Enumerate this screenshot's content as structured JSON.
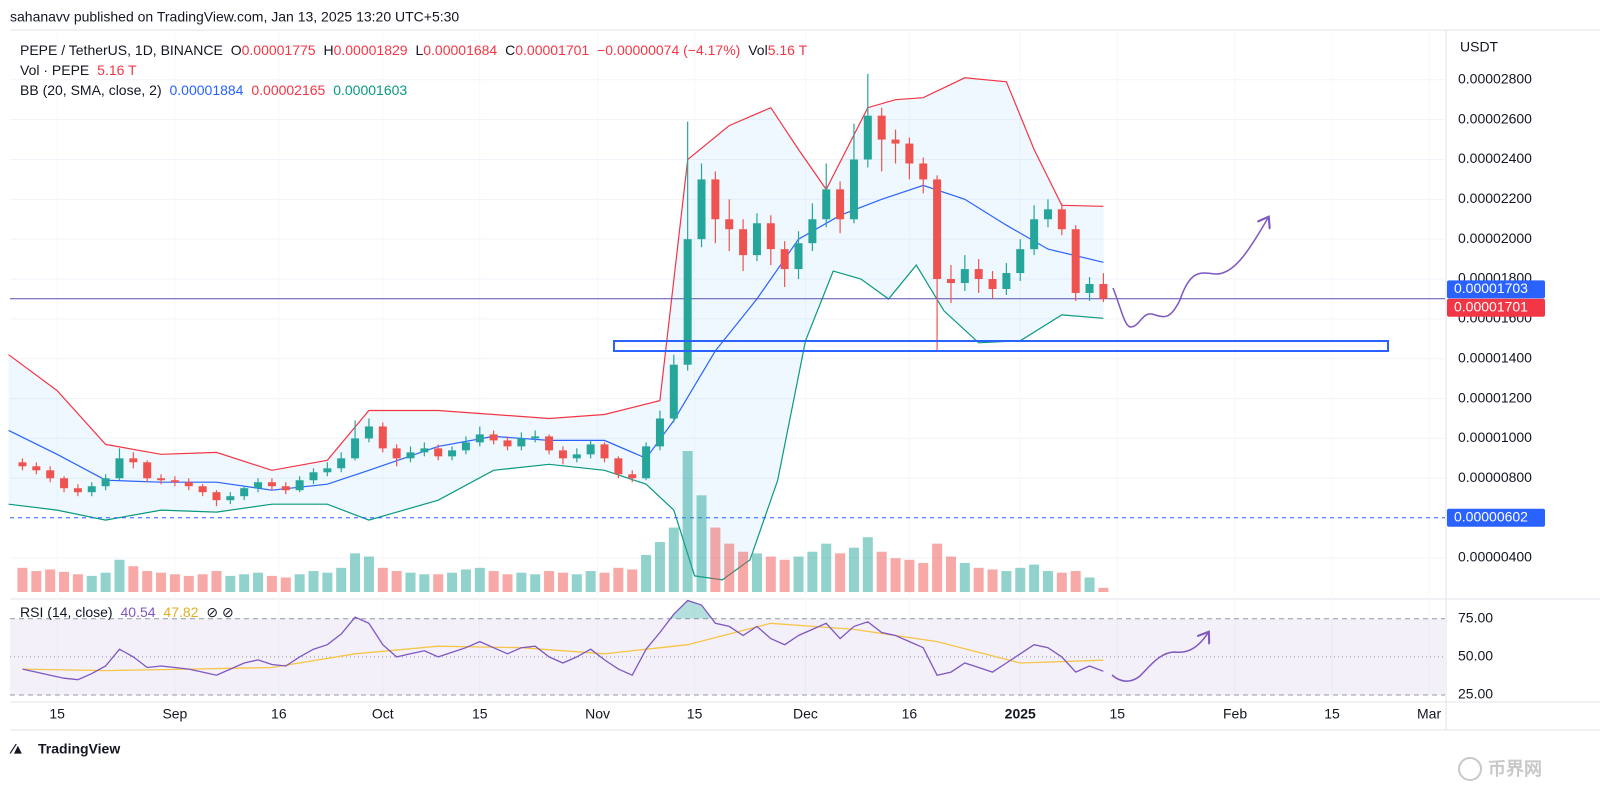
{
  "published": "sahanavv published on TradingView.com, Jan 13, 2025 13:20 UTC+5:30",
  "brand": "TradingView",
  "watermark": "币界网",
  "legend": {
    "symbol": "PEPE / TetherUS, 1D, BINANCE",
    "open_label": "O",
    "open": "0.00001775",
    "high_label": "H",
    "high": "0.00001829",
    "low_label": "L",
    "low": "0.00001684",
    "close_label": "C",
    "close": "0.00001701",
    "change": "−0.00000074 (−4.17%)",
    "vol_label": "Vol",
    "vol": "5.16 T"
  },
  "volume_legend": {
    "name": "Vol · PEPE",
    "value": "5.16 T"
  },
  "bb_legend": {
    "name": "BB (20, SMA, close, 2)",
    "basis": "0.00001884",
    "upper": "0.00002165",
    "lower": "0.00001603"
  },
  "chart_data": {
    "type": "candlestick",
    "currency": "USDT",
    "x": [
      -5,
      -3,
      -1,
      1,
      3,
      5,
      7,
      9,
      11,
      13,
      15,
      17,
      19,
      21,
      23,
      25,
      27,
      29,
      31,
      33,
      35,
      37,
      39,
      41,
      43,
      45,
      47,
      49,
      51,
      53,
      55,
      57,
      59,
      61,
      63,
      65,
      67,
      69,
      71,
      73,
      75,
      77,
      79,
      81,
      83,
      85,
      87,
      89,
      91,
      93,
      95,
      97,
      99,
      101,
      103,
      105,
      107,
      109,
      111,
      113,
      115,
      117,
      119,
      121,
      123,
      125,
      127,
      129,
      131,
      133,
      135,
      137,
      139,
      141,
      143,
      145,
      147,
      149,
      151
    ],
    "open": [
      8.8e-06,
      8.6e-06,
      8.4e-06,
      8e-06,
      7.5e-06,
      7.3e-06,
      7.6e-06,
      8e-06,
      9e-06,
      8.8e-06,
      8e-06,
      7.9e-06,
      7.8e-06,
      7.6e-06,
      7.3e-06,
      6.9e-06,
      7.1e-06,
      7.5e-06,
      7.8e-06,
      7.6e-06,
      7.4e-06,
      7.9e-06,
      8.3e-06,
      8.5e-06,
      9e-06,
      1e-05,
      1.06e-05,
      9.5e-06,
      9e-06,
      9.3e-06,
      9.5e-06,
      9.1e-06,
      9.4e-06,
      9.8e-06,
      1.02e-05,
      9.9e-06,
      9.6e-06,
      1e-05,
      1.01e-05,
      9.4e-06,
      9e-06,
      9.2e-06,
      9.7e-06,
      9e-06,
      8.2e-06,
      8e-06,
      9.6e-06,
      1.1e-05,
      1.37e-05,
      2e-05,
      2.3e-05,
      2.1e-05,
      2.05e-05,
      1.92e-05,
      2.08e-05,
      1.95e-05,
      1.85e-05,
      1.98e-05,
      2.1e-05,
      2.25e-05,
      2.1e-05,
      2.4e-05,
      2.62e-05,
      2.5e-05,
      2.48e-05,
      2.38e-05,
      2.3e-05,
      1.8e-05,
      1.78e-05,
      1.85e-05,
      1.8e-05,
      1.75e-05,
      1.83e-05,
      1.95e-05,
      2.1e-05,
      2.15e-05,
      2.05e-05,
      1.73e-05,
      1.775e-05
    ],
    "high": [
      9e-06,
      8.8e-06,
      8.6e-06,
      8.1e-06,
      7.7e-06,
      7.8e-06,
      8.2e-06,
      9.5e-06,
      9.3e-06,
      8.9e-06,
      8.2e-06,
      8.1e-06,
      8e-06,
      7.7e-06,
      7.4e-06,
      7.3e-06,
      7.6e-06,
      8e-06,
      8e-06,
      7.8e-06,
      8.1e-06,
      8.5e-06,
      8.8e-06,
      9.3e-06,
      1.09e-05,
      1.1e-05,
      1.08e-05,
      9.7e-06,
      9.6e-06,
      9.8e-06,
      9.7e-06,
      9.6e-06,
      1.01e-05,
      1.06e-05,
      1.04e-05,
      1.01e-05,
      1.03e-05,
      1.04e-05,
      1.02e-05,
      9.6e-06,
      9.5e-06,
      9.9e-06,
      9.8e-06,
      9.1e-06,
      8.4e-06,
      9.8e-06,
      1.14e-05,
      1.42e-05,
      2.59e-05,
      2.38e-05,
      2.34e-05,
      2.2e-05,
      2.1e-05,
      2.13e-05,
      2.12e-05,
      1.99e-05,
      2.04e-05,
      2.18e-05,
      2.38e-05,
      2.29e-05,
      2.58e-05,
      2.83e-05,
      2.66e-05,
      2.55e-05,
      2.51e-05,
      2.41e-05,
      2.32e-05,
      1.87e-05,
      1.92e-05,
      1.9e-05,
      1.84e-05,
      1.88e-05,
      2e-05,
      2.17e-05,
      2.2e-05,
      2.18e-05,
      2.07e-05,
      1.81e-05,
      1.829e-05
    ],
    "low": [
      8.4e-06,
      8.2e-06,
      7.8e-06,
      7.3e-06,
      7.1e-06,
      7.1e-06,
      7.4e-06,
      7.9e-06,
      8.5e-06,
      7.8e-06,
      7.7e-06,
      7.6e-06,
      7.4e-06,
      7.1e-06,
      6.6e-06,
      6.7e-06,
      6.9e-06,
      7.3e-06,
      7.4e-06,
      7.2e-06,
      7.3e-06,
      7.7e-06,
      8.1e-06,
      8.3e-06,
      8.9e-06,
      9.8e-06,
      9.3e-06,
      8.6e-06,
      8.8e-06,
      9.1e-06,
      8.9e-06,
      8.9e-06,
      9.2e-06,
      9.6e-06,
      9.7e-06,
      9.4e-06,
      9.4e-06,
      9.8e-06,
      9.2e-06,
      8.7e-06,
      8.8e-06,
      9e-06,
      8.8e-06,
      8e-06,
      7.8e-06,
      7.9e-06,
      9.4e-06,
      1.08e-05,
      1.34e-05,
      1.96e-05,
      1.98e-05,
      1.94e-05,
      1.84e-05,
      1.89e-05,
      1.87e-05,
      1.76e-05,
      1.8e-05,
      1.94e-05,
      2.06e-05,
      2.03e-05,
      2.08e-05,
      2.36e-05,
      2.34e-05,
      2.38e-05,
      2.3e-05,
      2.23e-05,
      1.44e-05,
      1.68e-05,
      1.74e-05,
      1.73e-05,
      1.7e-05,
      1.72e-05,
      1.79e-05,
      1.92e-05,
      2.06e-05,
      2.02e-05,
      1.69e-05,
      1.69e-05,
      1.684e-05
    ],
    "close": [
      8.6e-06,
      8.4e-06,
      8e-06,
      7.5e-06,
      7.3e-06,
      7.6e-06,
      8e-06,
      9e-06,
      8.8e-06,
      8e-06,
      7.9e-06,
      7.8e-06,
      7.6e-06,
      7.3e-06,
      6.9e-06,
      7.1e-06,
      7.5e-06,
      7.8e-06,
      7.6e-06,
      7.4e-06,
      7.9e-06,
      8.3e-06,
      8.5e-06,
      9e-06,
      1e-05,
      1.06e-05,
      9.5e-06,
      9e-06,
      9.3e-06,
      9.5e-06,
      9.1e-06,
      9.4e-06,
      9.8e-06,
      1.02e-05,
      9.9e-06,
      9.6e-06,
      1e-05,
      1.01e-05,
      9.4e-06,
      9e-06,
      9.2e-06,
      9.7e-06,
      9e-06,
      8.2e-06,
      8e-06,
      9.6e-06,
      1.1e-05,
      1.37e-05,
      2e-05,
      2.3e-05,
      2.1e-05,
      2.05e-05,
      1.92e-05,
      2.08e-05,
      1.95e-05,
      1.85e-05,
      1.98e-05,
      2.1e-05,
      2.25e-05,
      2.1e-05,
      2.4e-05,
      2.62e-05,
      2.5e-05,
      2.48e-05,
      2.38e-05,
      2.3e-05,
      1.8e-05,
      1.78e-05,
      1.85e-05,
      1.8e-05,
      1.75e-05,
      1.83e-05,
      1.95e-05,
      2.1e-05,
      2.15e-05,
      2.05e-05,
      1.73e-05,
      1.775e-05,
      1.701e-05
    ],
    "volume": [
      30,
      26,
      28,
      25,
      22,
      20,
      24,
      40,
      32,
      26,
      24,
      22,
      20,
      22,
      26,
      20,
      22,
      24,
      20,
      18,
      22,
      26,
      24,
      30,
      48,
      44,
      30,
      26,
      24,
      22,
      22,
      24,
      28,
      30,
      26,
      22,
      24,
      22,
      26,
      24,
      22,
      26,
      24,
      30,
      28,
      46,
      62,
      80,
      175,
      120,
      80,
      60,
      50,
      48,
      44,
      40,
      44,
      50,
      60,
      48,
      55,
      68,
      50,
      42,
      40,
      36,
      60,
      44,
      36,
      30,
      28,
      26,
      30,
      34,
      26,
      24,
      26,
      18,
      5.16
    ],
    "volume_lim": [
      0,
      180
    ],
    "up_color": "#26a69a",
    "down_color": "#ef5350",
    "bands": [
      {
        "color": "#f23645",
        "x": [
          -7,
          0,
          7,
          15,
          23,
          31,
          39,
          45,
          55,
          63,
          71,
          79,
          87,
          91,
          97,
          103,
          107,
          111,
          117,
          121,
          125,
          131,
          137,
          141,
          145,
          151
        ],
        "values": [
          1.42e-05,
          1.24e-05,
          9.7e-06,
          9.2e-06,
          9.3e-06,
          8.4e-06,
          8.9e-06,
          1.14e-05,
          1.14e-05,
          1.12e-05,
          1.1e-05,
          1.12e-05,
          1.19e-05,
          2.4e-05,
          2.57e-05,
          2.66e-05,
          2.45e-05,
          2.25e-05,
          2.66e-05,
          2.7e-05,
          2.71e-05,
          2.81e-05,
          2.79e-05,
          2.45e-05,
          2.17e-05,
          2.165e-05
        ]
      },
      {
        "color": "#2962ff",
        "x": [
          -7,
          0,
          7,
          15,
          23,
          31,
          39,
          45,
          55,
          63,
          71,
          79,
          85,
          89,
          95,
          101,
          107,
          113,
          119,
          125,
          131,
          137,
          143,
          151
        ],
        "values": [
          1.04e-05,
          9.2e-06,
          7.9e-06,
          7.8e-06,
          7.8e-06,
          7.4e-06,
          7.7e-06,
          8.4e-06,
          9.6e-06,
          1.01e-05,
          9.9e-06,
          9.9e-06,
          9e-06,
          1.09e-05,
          1.44e-05,
          1.7e-05,
          2e-05,
          2.12e-05,
          2.2e-05,
          2.27e-05,
          2.2e-05,
          2.07e-05,
          1.95e-05,
          1.884e-05
        ]
      },
      {
        "color": "#089981",
        "x": [
          -7,
          0,
          7,
          15,
          23,
          31,
          39,
          45,
          55,
          63,
          71,
          79,
          85,
          89,
          92,
          96,
          100,
          104,
          108,
          112,
          116,
          120,
          124,
          128,
          133,
          139,
          145,
          151
        ],
        "values": [
          6.7e-06,
          6.4e-06,
          5.9e-06,
          6.4e-06,
          6.3e-06,
          6.7e-06,
          6.7e-06,
          5.9e-06,
          6.9e-06,
          8.4e-06,
          8.7e-06,
          8.4e-06,
          7.7e-06,
          6.4e-06,
          3.1e-06,
          2.9e-06,
          3.9e-06,
          7.9e-06,
          1.49e-05,
          1.84e-05,
          1.8e-05,
          1.7e-05,
          1.87e-05,
          1.64e-05,
          1.48e-05,
          1.49e-05,
          1.62e-05,
          1.603e-05
        ]
      }
    ],
    "band_fill": "#2196f3",
    "xlim": [
      -6.8,
      200.3
    ],
    "xticks": [
      {
        "value": 0,
        "label": "15"
      },
      {
        "value": 17,
        "label": "Sep"
      },
      {
        "value": 32,
        "label": "16"
      },
      {
        "value": 47,
        "label": "Oct"
      },
      {
        "value": 61,
        "label": "15"
      },
      {
        "value": 78,
        "label": "Nov"
      },
      {
        "value": 92,
        "label": "15"
      },
      {
        "value": 108,
        "label": "Dec"
      },
      {
        "value": 123,
        "label": "16"
      },
      {
        "value": 139,
        "label": "2025"
      },
      {
        "value": 153,
        "label": "15"
      },
      {
        "value": 170,
        "label": "Feb"
      },
      {
        "value": 184,
        "label": "15"
      },
      {
        "value": 198,
        "label": "Mar"
      }
    ],
    "ylim": [
      2.14e-06,
      3.05e-05
    ],
    "yticks": [
      {
        "value": 4e-06,
        "label": "0.00000400"
      },
      {
        "value": 6e-06,
        "label": "0.00000600"
      },
      {
        "value": 8e-06,
        "label": "0.00000800"
      },
      {
        "value": 1e-05,
        "label": "0.00001000"
      },
      {
        "value": 1.2e-05,
        "label": "0.00001200"
      },
      {
        "value": 1.4e-05,
        "label": "0.00001400"
      },
      {
        "value": 1.6e-05,
        "label": "0.00001600"
      },
      {
        "value": 1.8e-05,
        "label": "0.00001800"
      },
      {
        "value": 2e-05,
        "label": "0.00002000"
      },
      {
        "value": 2.2e-05,
        "label": "0.00002200"
      },
      {
        "value": 2.4e-05,
        "label": "0.00002400"
      },
      {
        "value": 2.6e-05,
        "label": "0.00002600"
      },
      {
        "value": 2.8e-05,
        "label": "0.00002800"
      }
    ],
    "grid": true,
    "price_marks": [
      {
        "value": 1.703e-05,
        "label": "0.00001703",
        "color": "#2962ff",
        "line": "none"
      },
      {
        "value": 1.701e-05,
        "label": "0.00001701",
        "color": "#f23645",
        "line": "solid"
      },
      {
        "value": 6.02e-06,
        "label": "0.00000602",
        "color": "#2962ff",
        "line": "dashed"
      }
    ],
    "rsi": {
      "title": "RSI (14, close)",
      "value_label": "40.54",
      "ma_label": "47.82",
      "color": "#7e57c2",
      "ma_color": "#f7c548",
      "values": [
        42,
        40,
        38,
        36,
        35,
        39,
        44,
        55,
        50,
        43,
        44,
        43,
        42,
        40,
        38,
        42,
        46,
        48,
        45,
        44,
        50,
        55,
        58,
        65,
        76,
        72,
        58,
        50,
        52,
        54,
        50,
        53,
        56,
        60,
        56,
        52,
        56,
        57,
        50,
        46,
        50,
        55,
        48,
        42,
        38,
        55,
        66,
        78,
        87,
        84,
        72,
        70,
        64,
        70,
        62,
        58,
        64,
        68,
        72,
        62,
        70,
        73,
        66,
        64,
        60,
        56,
        38,
        40,
        46,
        43,
        40,
        46,
        52,
        58,
        56,
        50,
        40,
        44,
        40.54
      ],
      "ma_x": [
        -5,
        7,
        19,
        31,
        43,
        55,
        67,
        79,
        91,
        103,
        115,
        127,
        139,
        151
      ],
      "ma_values": [
        42,
        41,
        42,
        43,
        52,
        57,
        56,
        52,
        58,
        72,
        68,
        60,
        46,
        47.82
      ],
      "ylim": [
        20.4,
        87.3
      ],
      "yticks": [
        {
          "value": 25,
          "label": "25.00"
        },
        {
          "value": 50,
          "label": "50.00"
        },
        {
          "value": 75,
          "label": "75.00"
        }
      ]
    }
  }
}
